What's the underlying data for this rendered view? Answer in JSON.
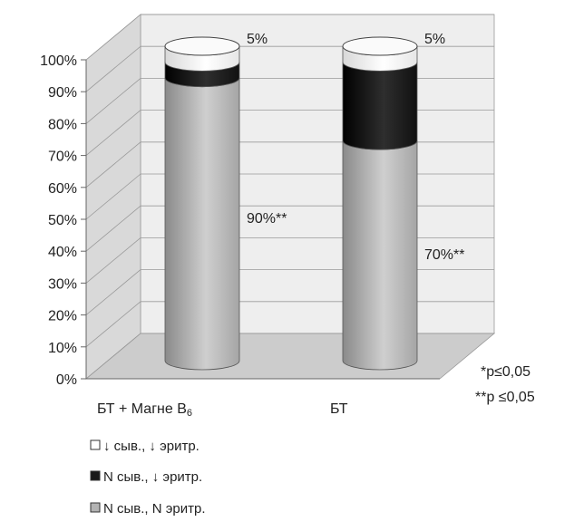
{
  "chart_data": {
    "type": "bar",
    "stacked": true,
    "three_d": true,
    "categories": [
      "БТ + Магне B6",
      "БТ"
    ],
    "category_labels": [
      {
        "main": "БТ + Магне  B",
        "sub": "6"
      },
      {
        "main": "БТ",
        "sub": ""
      }
    ],
    "series": [
      {
        "name": "N сыв., N эритр.",
        "values": [
          90,
          70
        ],
        "color": "#b3b3b3"
      },
      {
        "name": "N сыв., ↓ эритр.",
        "values": [
          5,
          25
        ],
        "color": "#1a1a1a"
      },
      {
        "name": "↓ сыв., ↓ эритр.",
        "values": [
          5,
          5
        ],
        "color": "#ffffff"
      }
    ],
    "ylim": [
      0,
      100
    ],
    "y_ticks": [
      "0%",
      "10%",
      "20%",
      "30%",
      "40%",
      "50%",
      "60%",
      "70%",
      "80%",
      "90%",
      "100%"
    ],
    "grid": true,
    "legend_position": "bottom-left",
    "legend_order": [
      2,
      1,
      0
    ],
    "data_labels": [
      {
        "text": "5%",
        "category": 0,
        "series": 2
      },
      {
        "text": "5%",
        "category": 1,
        "series": 2
      },
      {
        "text": "90%**",
        "category": 0,
        "series": 0
      },
      {
        "text": "70%**",
        "category": 1,
        "series": 0
      }
    ],
    "notes": [
      "*p≤0,05",
      "**p ≤0,05"
    ]
  }
}
